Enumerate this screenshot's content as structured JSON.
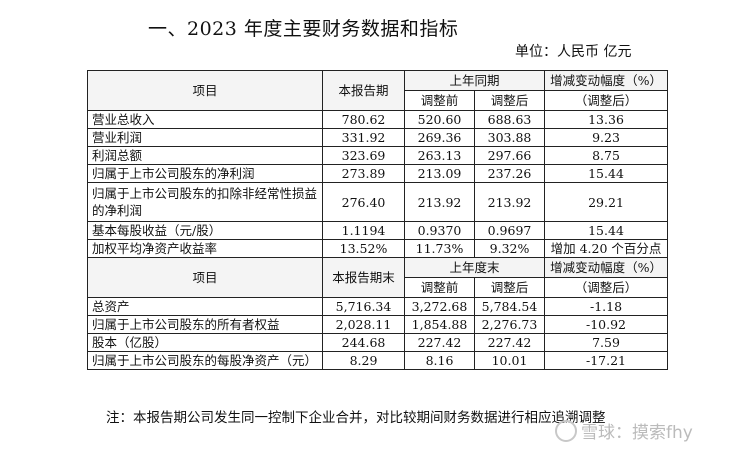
{
  "title": "一、2023 年度主要财务数据和指标",
  "unit": "单位：人民币 亿元",
  "section1": {
    "header": {
      "item": "项目",
      "current": "本报告期",
      "prior": "上年同期",
      "before": "调整前",
      "after": "调整后",
      "change": "增减变动幅度（%）",
      "change_sub": "（调整后）"
    },
    "rows": [
      {
        "name": "营业总收入",
        "cur": "780.62",
        "before": "520.60",
        "after": "688.63",
        "change": "13.36"
      },
      {
        "name": "营业利润",
        "cur": "331.92",
        "before": "269.36",
        "after": "303.88",
        "change": "9.23"
      },
      {
        "name": "利润总额",
        "cur": "323.69",
        "before": "263.13",
        "after": "297.66",
        "change": "8.75"
      },
      {
        "name": "归属于上市公司股东的净利润",
        "cur": "273.89",
        "before": "213.09",
        "after": "237.26",
        "change": "15.44"
      },
      {
        "name": "归属于上市公司股东的扣除非经常性损益的净利润",
        "cur": "276.40",
        "before": "213.92",
        "after": "213.92",
        "change": "29.21"
      },
      {
        "name": "基本每股收益（元/股）",
        "cur": "1.1194",
        "before": "0.9370",
        "after": "0.9697",
        "change": "15.44"
      },
      {
        "name": "加权平均净资产收益率",
        "cur": "13.52%",
        "before": "11.73%",
        "after": "9.32%",
        "change": "增加 4.20 个百分点"
      }
    ]
  },
  "section2": {
    "header": {
      "item": "项目",
      "current": "本报告期末",
      "prior": "上年度末",
      "before": "调整前",
      "after": "调整后",
      "change": "增减变动幅度（%）",
      "change_sub": "（调整后）"
    },
    "rows": [
      {
        "name": "总资产",
        "cur": "5,716.34",
        "before": "3,272.68",
        "after": "5,784.54",
        "change": "-1.18"
      },
      {
        "name": "归属于上市公司股东的所有者权益",
        "cur": "2,028.11",
        "before": "1,854.88",
        "after": "2,276.73",
        "change": "-10.92"
      },
      {
        "name": "股本（亿股）",
        "cur": "244.68",
        "before": "227.42",
        "after": "227.42",
        "change": "7.59"
      },
      {
        "name": "归属于上市公司股东的每股净资产（元）",
        "cur": "8.29",
        "before": "8.16",
        "after": "10.01",
        "change": "-17.21"
      }
    ]
  },
  "note": "注：本报告期公司发生同一控制下企业合并，对比较期间财务数据进行相应追溯调整",
  "watermark": "雪球：摸索fhy"
}
